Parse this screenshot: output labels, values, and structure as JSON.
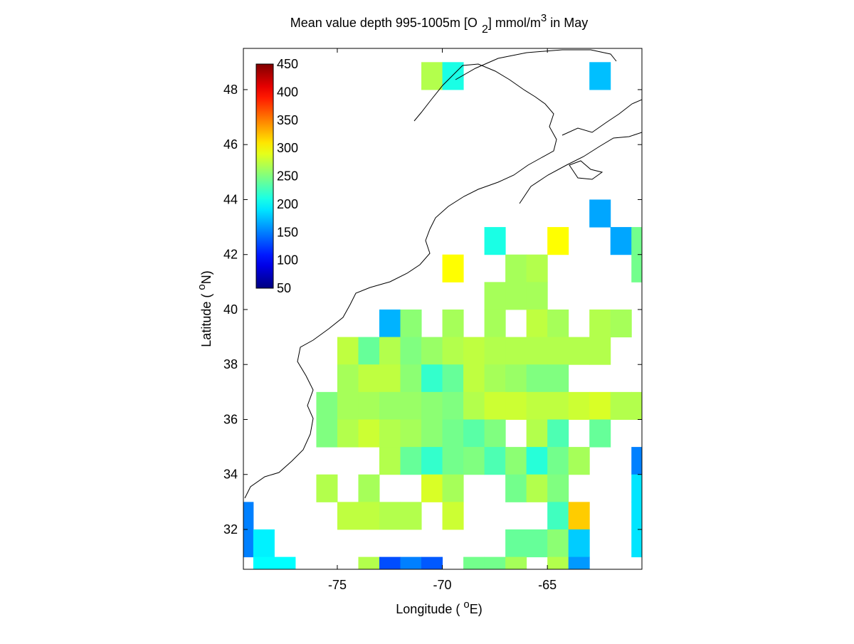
{
  "chart_data": {
    "type": "heatmap",
    "title": [
      "Mean value depth 995-1005m [O",
      "2",
      "] mmol/m",
      "3",
      " in May"
    ],
    "xlabel": [
      "Longitude ( ",
      "o",
      "E)"
    ],
    "ylabel": [
      "Latitude ( ",
      "o",
      "N)"
    ],
    "xlim": [
      -79.47,
      -60.5
    ],
    "ylim": [
      30.55,
      49.5
    ],
    "xticks": [
      -75,
      -70,
      -65
    ],
    "yticks": [
      32,
      34,
      36,
      38,
      40,
      42,
      44,
      46,
      48
    ],
    "colormap": "jet",
    "clim": [
      50,
      450
    ],
    "cticks": [
      50,
      100,
      150,
      200,
      250,
      300,
      350,
      400,
      450
    ],
    "x": [
      -71,
      -70,
      -63,
      -63,
      -68,
      -65,
      -62,
      -61,
      -70,
      -67,
      -66,
      -61,
      -68,
      -67,
      -66,
      -73,
      -72,
      -70,
      -68,
      -66,
      -65,
      -63,
      -62,
      -75,
      -74,
      -73,
      -72,
      -71,
      -70,
      -69,
      -68,
      -67,
      -66,
      -65,
      -64,
      -63,
      -75,
      -74,
      -73,
      -72,
      -71,
      -70,
      -69,
      -68,
      -67,
      -66,
      -65,
      -76,
      -75,
      -74,
      -73,
      -72,
      -71,
      -70,
      -69,
      -68,
      -67,
      -66,
      -65,
      -64,
      -63,
      -62,
      -61,
      -76,
      -75,
      -74,
      -73,
      -72,
      -71,
      -70,
      -69,
      -68,
      -66,
      -65,
      -63,
      -73,
      -72,
      -71,
      -70,
      -69,
      -68,
      -67,
      -66,
      -65,
      -64,
      -61,
      -76,
      -74,
      -71,
      -70,
      -67,
      -66,
      -65,
      -61,
      -80,
      -75,
      -74,
      -73,
      -72,
      -70,
      -65,
      -64,
      -61,
      -80,
      -79,
      -67,
      -66,
      -65,
      -64,
      -61,
      -79,
      -78,
      -74,
      -73,
      -72,
      -71,
      -69,
      -68,
      -67,
      -65,
      -64
    ],
    "y": [
      48,
      48,
      48,
      43,
      42,
      42,
      42,
      42,
      41,
      41,
      41,
      41,
      40,
      40,
      40,
      39,
      39,
      39,
      39,
      39,
      39,
      39,
      39,
      38,
      38,
      38,
      38,
      38,
      38,
      38,
      38,
      38,
      38,
      38,
      38,
      38,
      37,
      37,
      37,
      37,
      37,
      37,
      37,
      37,
      37,
      37,
      37,
      36,
      36,
      36,
      36,
      36,
      36,
      36,
      36,
      36,
      36,
      36,
      36,
      36,
      36,
      36,
      36,
      35,
      35,
      35,
      35,
      35,
      35,
      35,
      35,
      35,
      35,
      35,
      35,
      34,
      34,
      34,
      34,
      34,
      34,
      34,
      34,
      34,
      34,
      34,
      33,
      33,
      33,
      33,
      33,
      33,
      33,
      33,
      32,
      32,
      32,
      32,
      32,
      32,
      32,
      32,
      32,
      31,
      31,
      31,
      31,
      31,
      31,
      31,
      30,
      30,
      30,
      30,
      30,
      30,
      30,
      30,
      30,
      30,
      30
    ],
    "values": [
      270,
      210,
      175,
      165,
      210,
      300,
      165,
      245,
      300,
      265,
      270,
      245,
      265,
      265,
      265,
      170,
      255,
      265,
      265,
      275,
      265,
      270,
      265,
      275,
      240,
      270,
      250,
      260,
      270,
      275,
      270,
      270,
      270,
      270,
      270,
      270,
      265,
      275,
      275,
      255,
      220,
      240,
      275,
      265,
      260,
      250,
      250,
      250,
      265,
      265,
      260,
      260,
      255,
      250,
      270,
      280,
      280,
      275,
      275,
      280,
      285,
      270,
      270,
      250,
      270,
      280,
      270,
      265,
      255,
      245,
      235,
      250,
      270,
      230,
      240,
      270,
      240,
      220,
      245,
      250,
      230,
      255,
      215,
      245,
      265,
      150,
      270,
      265,
      285,
      265,
      245,
      270,
      250,
      190,
      150,
      275,
      275,
      270,
      270,
      280,
      225,
      320,
      190,
      150,
      195,
      240,
      240,
      255,
      180,
      190,
      200,
      200,
      270,
      130,
      150,
      135,
      245,
      245,
      265,
      270,
      160
    ]
  }
}
